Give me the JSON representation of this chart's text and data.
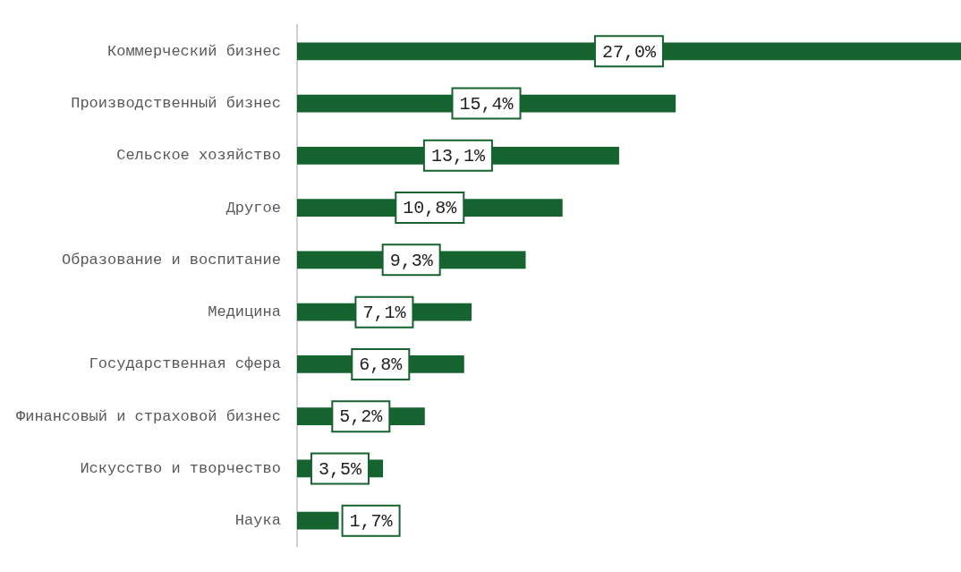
{
  "chart_data": {
    "type": "bar",
    "orientation": "horizontal",
    "categories": [
      "Коммерческий бизнес",
      "Производственный бизнес",
      "Сельское хозяйство",
      "Другое",
      "Образование и воспитание",
      "Медицина",
      "Государственная сфера",
      "Финансовый и страховой бизнес",
      "Искусство и творчество",
      "Наука"
    ],
    "values": [
      27.0,
      15.4,
      13.1,
      10.8,
      9.3,
      7.1,
      6.8,
      5.2,
      3.5,
      1.7
    ],
    "value_labels": [
      "27,0%",
      "15,4%",
      "13,1%",
      "10,8%",
      "9,3%",
      "7,1%",
      "6,8%",
      "5,2%",
      "3,5%",
      "1,7%"
    ],
    "color": "#15632f",
    "xlim": [
      0,
      27
    ]
  }
}
